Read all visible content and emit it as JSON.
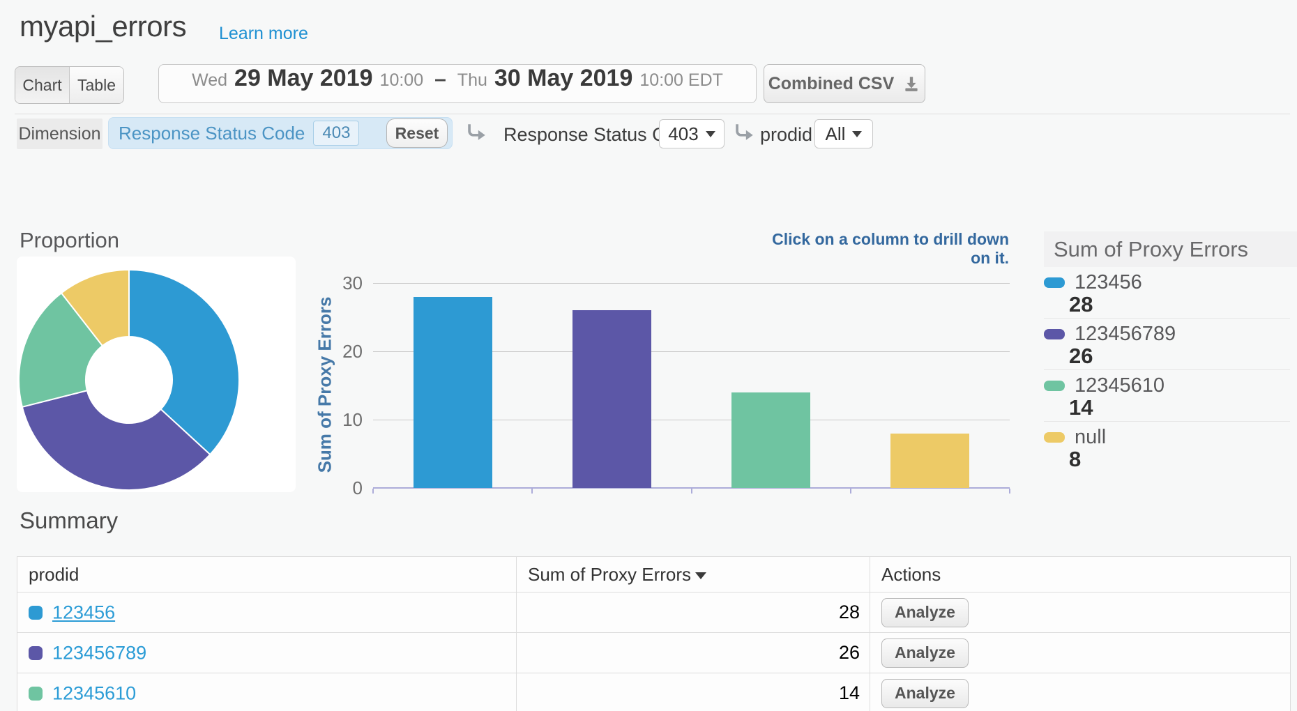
{
  "page": {
    "title": "myapi_errors",
    "learn_more_label": "Learn more"
  },
  "toolbar": {
    "chart_tab": "Chart",
    "table_tab": "Table",
    "date_range": {
      "start_day": "Wed",
      "start_date": "29 May 2019",
      "start_time": "10:00",
      "dash": "–",
      "end_day": "Thu",
      "end_date": "30 May 2019",
      "end_time": "10:00 EDT"
    },
    "combined_csv_label": "Combined CSV"
  },
  "filters": {
    "dimension_label": "Dimension",
    "active_filter": {
      "name": "Response Status Code",
      "value": "403",
      "reset_label": "Reset"
    },
    "drilldowns": [
      {
        "label": "Response Status Code",
        "value": "403"
      },
      {
        "label": "prodid",
        "value": "All"
      }
    ]
  },
  "section": {
    "proportion_title": "Proportion",
    "drill_hint": "Click on a column to drill down on it.",
    "summary_heading": "Summary"
  },
  "chart_data": [
    {
      "type": "pie",
      "subtype": "donut",
      "title": "Proportion",
      "categories": [
        "123456",
        "123456789",
        "12345610",
        "null"
      ],
      "values": [
        28,
        26,
        14,
        8
      ],
      "colors": [
        "#2D9AD3",
        "#5C57A7",
        "#6FC4A1",
        "#EDCA66"
      ]
    },
    {
      "type": "bar",
      "categories": [
        "123456",
        "123456789",
        "12345610",
        "null"
      ],
      "values": [
        28,
        26,
        14,
        8
      ],
      "colors": [
        "#2D9AD3",
        "#5C57A7",
        "#6FC4A1",
        "#EDCA66"
      ],
      "ylabel": "Sum of Proxy Errors",
      "ylim": [
        0,
        30
      ],
      "yticks": [
        0,
        10,
        20,
        30
      ],
      "grid": true,
      "legend_title": "Sum of Proxy Errors",
      "legend_position": "right",
      "annotation": "Click on a column to drill down on it."
    }
  ],
  "summary_table": {
    "columns": [
      "prodid",
      "Sum of Proxy Errors",
      "Actions"
    ],
    "sorted_column": "Sum of Proxy Errors",
    "sort_direction": "desc",
    "rows": [
      {
        "prodid": "123456",
        "sum": "28",
        "action": "Analyze",
        "color": "#2D9AD3",
        "underlined": true
      },
      {
        "prodid": "123456789",
        "sum": "26",
        "action": "Analyze",
        "color": "#5C57A7",
        "underlined": false
      },
      {
        "prodid": "12345610",
        "sum": "14",
        "action": "Analyze",
        "color": "#6FC4A1",
        "underlined": false
      }
    ]
  },
  "colors": {
    "series_blue": "#2D9AD3",
    "series_purple": "#5C57A7",
    "series_green": "#6FC4A1",
    "series_yellow": "#EDCA66",
    "link_blue": "#1E90D2",
    "filter_bg": "#D7E9F6",
    "filter_text": "#4B94C4",
    "axis_title": "#4679A8",
    "hint_text": "#33689E",
    "baseline": "#ACACD9",
    "page_bg": "#F7F8F8"
  }
}
